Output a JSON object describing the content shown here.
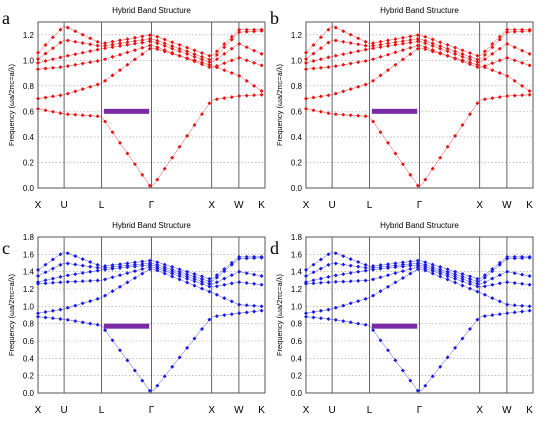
{
  "figure": {
    "panel_title": "Hybrid Band Structure",
    "ylabel": "Frequency (ωa/2πc=a/λ)",
    "x_ticks": [
      "X",
      "U",
      "L",
      "Γ",
      "X",
      "W",
      "K"
    ]
  },
  "colors": {
    "red": "#e81313",
    "blue": "#1a1ae6",
    "gap": "#7b2aa6"
  },
  "chart_data": [
    {
      "type": "scatter",
      "panel": "a",
      "title": "Hybrid Band Structure",
      "ylabel": "Frequency (ωa/2πc=a/λ)",
      "x_ticks": [
        "X",
        "U",
        "L",
        "Γ",
        "X",
        "W",
        "K"
      ],
      "ylim": [
        0,
        1.3
      ],
      "y_ticks": [
        0.0,
        0.2,
        0.4,
        0.6,
        0.8,
        1.0,
        1.2
      ],
      "color": "#e81313",
      "band_gap": [
        0.59,
        0.62
      ],
      "series": [
        {
          "values": [
            0.62,
            0.58,
            0.56,
            0.0,
            0.69,
            0.72,
            0.73
          ]
        },
        {
          "values": [
            0.7,
            0.73,
            0.82,
            1.1,
            0.96,
            0.88,
            0.76
          ]
        },
        {
          "values": [
            0.93,
            0.95,
            1.0,
            1.12,
            0.94,
            1.02,
            0.96
          ]
        },
        {
          "values": [
            0.98,
            1.03,
            1.09,
            1.15,
            0.98,
            1.13,
            1.05
          ]
        },
        {
          "values": [
            1.01,
            1.16,
            1.11,
            1.17,
            1.0,
            1.22,
            1.23
          ]
        },
        {
          "values": [
            1.06,
            1.27,
            1.13,
            1.2,
            1.03,
            1.24,
            1.24
          ]
        }
      ]
    },
    {
      "type": "scatter",
      "panel": "b",
      "title": "Hybrid Band Structure",
      "ylabel": "Frequency (ωa/2πc=a/λ)",
      "x_ticks": [
        "X",
        "U",
        "L",
        "Γ",
        "X",
        "W",
        "K"
      ],
      "ylim": [
        0,
        1.3
      ],
      "y_ticks": [
        0.0,
        0.2,
        0.4,
        0.6,
        0.8,
        1.0,
        1.2
      ],
      "color": "#e81313",
      "band_gap": [
        0.59,
        0.62
      ],
      "series": [
        {
          "values": [
            0.62,
            0.58,
            0.56,
            0.0,
            0.69,
            0.72,
            0.73
          ]
        },
        {
          "values": [
            0.7,
            0.73,
            0.82,
            1.1,
            0.96,
            0.88,
            0.76
          ]
        },
        {
          "values": [
            0.93,
            0.95,
            1.0,
            1.12,
            0.94,
            1.02,
            0.96
          ]
        },
        {
          "values": [
            0.98,
            1.03,
            1.09,
            1.15,
            0.98,
            1.13,
            1.05
          ]
        },
        {
          "values": [
            1.01,
            1.16,
            1.11,
            1.17,
            1.0,
            1.22,
            1.23
          ]
        },
        {
          "values": [
            1.06,
            1.27,
            1.13,
            1.2,
            1.03,
            1.24,
            1.24
          ]
        }
      ]
    },
    {
      "type": "scatter",
      "panel": "c",
      "title": "Hybrid Band Structure",
      "ylabel": "Frequency (ωa/2πc=a/λ)",
      "x_ticks": [
        "X",
        "U",
        "L",
        "Γ",
        "X",
        "W",
        "K"
      ],
      "ylim": [
        0,
        1.8
      ],
      "y_ticks": [
        0.0,
        0.2,
        0.4,
        0.6,
        0.8,
        1.0,
        1.2,
        1.4,
        1.6,
        1.8
      ],
      "color": "#1a1ae6",
      "band_gap": [
        0.76,
        0.8
      ],
      "series": [
        {
          "values": [
            0.88,
            0.85,
            0.78,
            0.0,
            0.88,
            0.92,
            0.95
          ]
        },
        {
          "values": [
            0.92,
            0.97,
            1.1,
            1.44,
            1.16,
            1.02,
            1.0
          ]
        },
        {
          "values": [
            1.26,
            1.28,
            1.3,
            1.46,
            1.22,
            1.28,
            1.25
          ]
        },
        {
          "values": [
            1.28,
            1.35,
            1.42,
            1.48,
            1.25,
            1.4,
            1.35
          ]
        },
        {
          "values": [
            1.35,
            1.5,
            1.44,
            1.5,
            1.28,
            1.55,
            1.56
          ]
        },
        {
          "values": [
            1.42,
            1.63,
            1.46,
            1.53,
            1.31,
            1.57,
            1.57
          ]
        }
      ]
    },
    {
      "type": "scatter",
      "panel": "d",
      "title": "Hybrid Band Structure",
      "ylabel": "Frequency (ωa/2πc=a/λ)",
      "x_ticks": [
        "X",
        "U",
        "L",
        "Γ",
        "X",
        "W",
        "K"
      ],
      "ylim": [
        0,
        1.8
      ],
      "y_ticks": [
        0.0,
        0.2,
        0.4,
        0.6,
        0.8,
        1.0,
        1.2,
        1.4,
        1.6,
        1.8
      ],
      "color": "#1a1ae6",
      "band_gap": [
        0.76,
        0.8
      ],
      "series": [
        {
          "values": [
            0.88,
            0.85,
            0.78,
            0.0,
            0.88,
            0.92,
            0.95
          ]
        },
        {
          "values": [
            0.92,
            0.97,
            1.1,
            1.44,
            1.16,
            1.02,
            1.0
          ]
        },
        {
          "values": [
            1.26,
            1.28,
            1.3,
            1.46,
            1.22,
            1.28,
            1.25
          ]
        },
        {
          "values": [
            1.28,
            1.35,
            1.42,
            1.48,
            1.25,
            1.4,
            1.35
          ]
        },
        {
          "values": [
            1.35,
            1.5,
            1.44,
            1.5,
            1.28,
            1.55,
            1.56
          ]
        },
        {
          "values": [
            1.42,
            1.63,
            1.46,
            1.53,
            1.31,
            1.57,
            1.57
          ]
        }
      ]
    }
  ]
}
